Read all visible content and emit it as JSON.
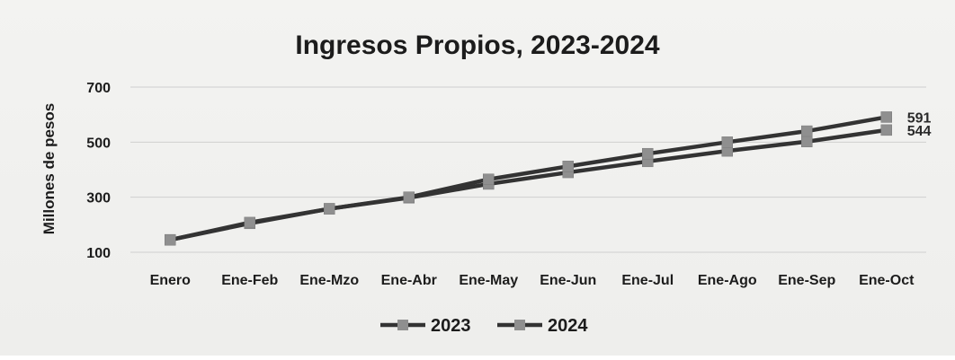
{
  "chart_data": {
    "type": "line",
    "title": "Ingresos Propios, 2023-2024",
    "xlabel": "",
    "ylabel": "Millones de pesos",
    "ylim": [
      100,
      700
    ],
    "yticks": [
      100,
      300,
      500,
      700
    ],
    "grid": true,
    "legend_position": "bottom",
    "categories": [
      "Enero",
      "Ene-Feb",
      "Ene-Mzo",
      "Ene-Abr",
      "Ene-May",
      "Ene-Jun",
      "Ene-Jul",
      "Ene-Ago",
      "Ene-Sep",
      "Ene-Oct"
    ],
    "series": [
      {
        "name": "2023",
        "color": "#333333",
        "marker_color": "#8f8f8f",
        "values": [
          145,
          205,
          258,
          298,
          348,
          390,
          430,
          468,
          502,
          544
        ],
        "end_label": "544"
      },
      {
        "name": "2024",
        "color": "#333333",
        "marker_color": "#8f8f8f",
        "values": [
          145,
          208,
          258,
          300,
          365,
          412,
          458,
          500,
          540,
          591
        ],
        "end_label": "591"
      }
    ]
  }
}
